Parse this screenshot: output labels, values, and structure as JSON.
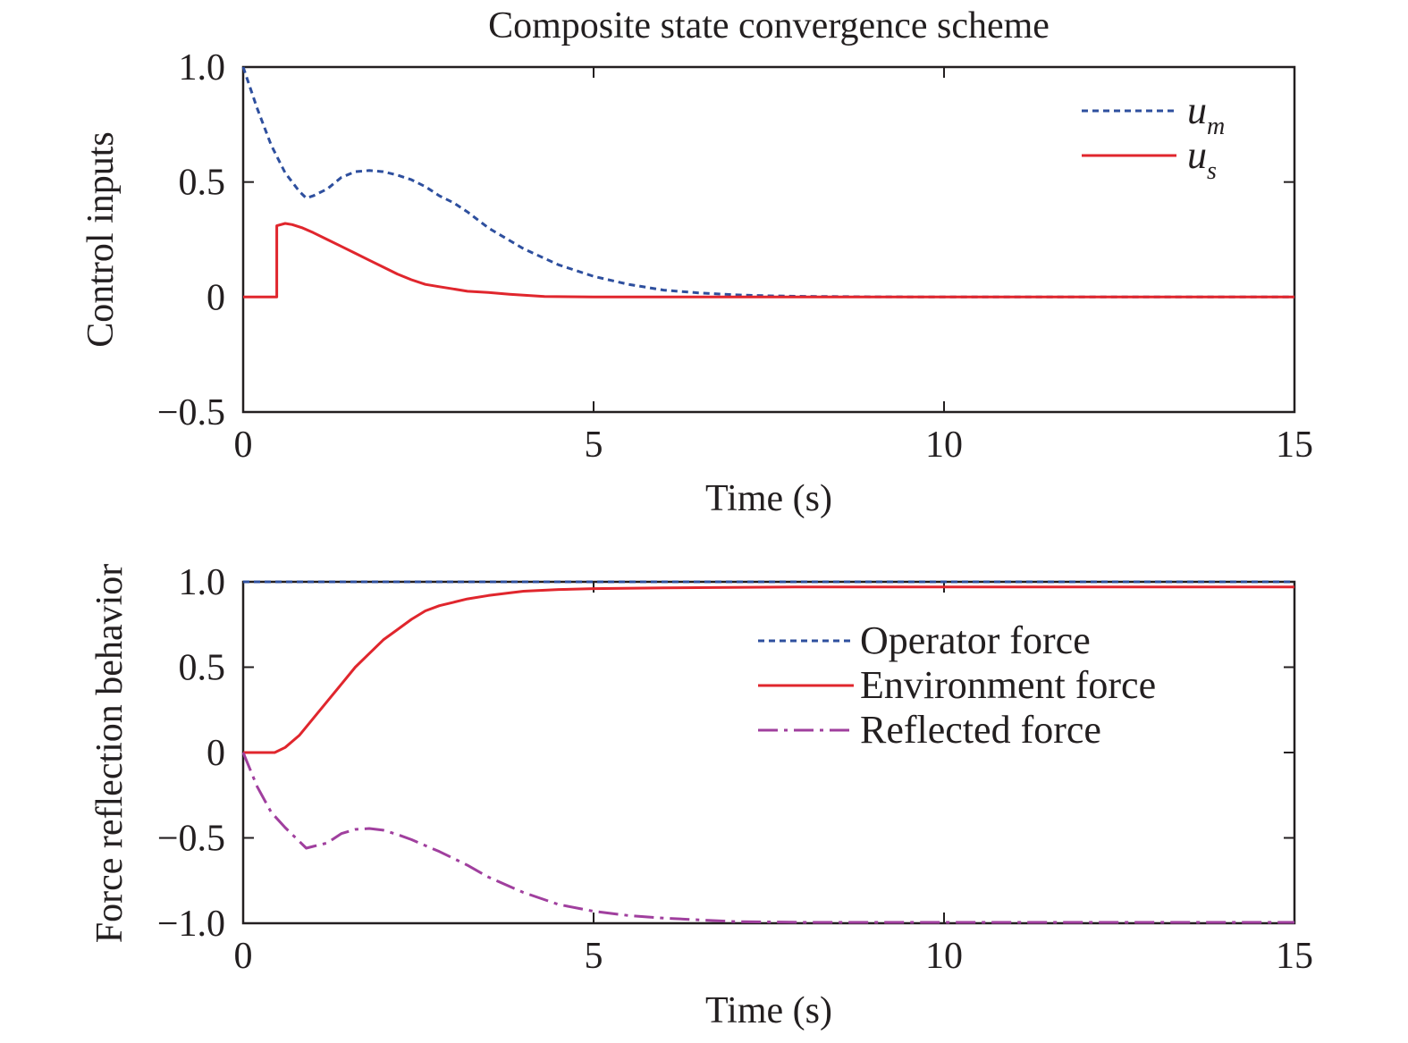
{
  "figure": {
    "title": "Composite state convergence scheme"
  },
  "chart_data": [
    {
      "type": "line",
      "title": "Composite state convergence scheme",
      "xlabel": "Time (s)",
      "ylabel": "Control inputs",
      "xlim": [
        0,
        15
      ],
      "ylim": [
        -0.5,
        1.0
      ],
      "xticks": [
        0,
        5,
        10,
        15
      ],
      "xtick_labels": [
        "0",
        "5",
        "10",
        "15"
      ],
      "yticks": [
        -0.5,
        0,
        0.5,
        1.0
      ],
      "ytick_labels": [
        "−0.5",
        "0",
        "0.5",
        "1.0"
      ],
      "legend_position": "top-right",
      "series": [
        {
          "name": "u",
          "subscript": "m",
          "color": "#2e4f9e",
          "style": "dotted",
          "x": [
            0,
            0.2,
            0.4,
            0.6,
            0.8,
            0.9,
            1.0,
            1.2,
            1.4,
            1.6,
            1.8,
            2.0,
            2.2,
            2.4,
            2.6,
            2.8,
            3.0,
            3.2,
            3.5,
            4.0,
            4.5,
            5.0,
            5.5,
            6.0,
            6.5,
            7.0,
            7.5,
            8.0,
            9.0,
            10.0,
            12.0,
            15.0
          ],
          "y": [
            1.0,
            0.82,
            0.66,
            0.54,
            0.46,
            0.43,
            0.44,
            0.47,
            0.52,
            0.545,
            0.55,
            0.545,
            0.53,
            0.51,
            0.48,
            0.44,
            0.41,
            0.37,
            0.3,
            0.21,
            0.14,
            0.09,
            0.055,
            0.03,
            0.018,
            0.01,
            0.005,
            0.003,
            0.001,
            0,
            0,
            0
          ]
        },
        {
          "name": "u",
          "subscript": "s",
          "color": "#e0262d",
          "style": "solid",
          "x": [
            0,
            0.48,
            0.48,
            0.6,
            0.7,
            0.85,
            1.0,
            1.2,
            1.4,
            1.6,
            1.8,
            2.0,
            2.2,
            2.4,
            2.6,
            2.8,
            3.0,
            3.2,
            3.5,
            3.8,
            4.0,
            4.3,
            5.0,
            10.0,
            15.0
          ],
          "y": [
            0,
            0,
            0.31,
            0.32,
            0.315,
            0.3,
            0.28,
            0.25,
            0.22,
            0.19,
            0.16,
            0.13,
            0.1,
            0.075,
            0.055,
            0.045,
            0.035,
            0.025,
            0.02,
            0.012,
            0.008,
            0.002,
            0,
            0,
            0
          ]
        }
      ]
    },
    {
      "type": "line",
      "xlabel": "Time (s)",
      "ylabel": "Force reflection behavior",
      "xlim": [
        0,
        15
      ],
      "ylim": [
        -1.0,
        1.0
      ],
      "xticks": [
        0,
        5,
        10,
        15
      ],
      "xtick_labels": [
        "0",
        "5",
        "10",
        "15"
      ],
      "yticks": [
        -1.0,
        -0.5,
        0,
        0.5,
        1.0
      ],
      "ytick_labels": [
        "−1.0",
        "−0.5",
        "0",
        "0.5",
        "1.0"
      ],
      "legend_position": "upper-right",
      "series": [
        {
          "name": "Operator force",
          "color": "#2e4f9e",
          "style": "dotted",
          "x": [
            0,
            15
          ],
          "y": [
            1.0,
            1.0
          ]
        },
        {
          "name": "Environment force",
          "color": "#e0262d",
          "style": "solid",
          "x": [
            0,
            0.45,
            0.6,
            0.8,
            1.0,
            1.2,
            1.4,
            1.6,
            1.8,
            2.0,
            2.2,
            2.4,
            2.6,
            2.8,
            3.0,
            3.2,
            3.5,
            3.8,
            4.0,
            4.5,
            5.0,
            6.0,
            8.0,
            10.0,
            15.0
          ],
          "y": [
            0,
            0,
            0.03,
            0.1,
            0.2,
            0.3,
            0.4,
            0.5,
            0.58,
            0.66,
            0.72,
            0.78,
            0.83,
            0.86,
            0.88,
            0.9,
            0.92,
            0.935,
            0.945,
            0.955,
            0.96,
            0.965,
            0.97,
            0.97,
            0.97
          ]
        },
        {
          "name": "Reflected force",
          "color": "#a03f9e",
          "style": "dashdot",
          "x": [
            0,
            0.2,
            0.4,
            0.6,
            0.8,
            0.9,
            1.0,
            1.2,
            1.4,
            1.6,
            1.8,
            2.0,
            2.2,
            2.4,
            2.6,
            2.8,
            3.0,
            3.2,
            3.5,
            4.0,
            4.5,
            5.0,
            5.5,
            6.0,
            6.5,
            7.0,
            8.0,
            10.0,
            15.0
          ],
          "y": [
            0,
            -0.2,
            -0.35,
            -0.44,
            -0.52,
            -0.56,
            -0.55,
            -0.53,
            -0.475,
            -0.45,
            -0.445,
            -0.455,
            -0.48,
            -0.51,
            -0.545,
            -0.58,
            -0.62,
            -0.66,
            -0.73,
            -0.82,
            -0.89,
            -0.93,
            -0.955,
            -0.97,
            -0.98,
            -0.99,
            -0.995,
            -0.995,
            -0.995
          ]
        }
      ]
    }
  ]
}
